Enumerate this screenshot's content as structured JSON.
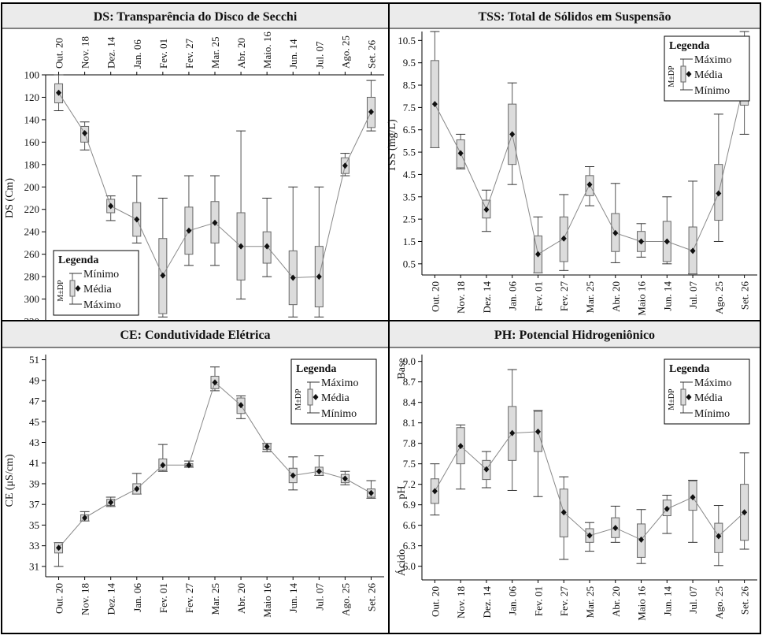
{
  "chart_data": [
    {
      "type": "boxplot",
      "title": "DS: Transparência do Disco de Secchi",
      "xlabel": "",
      "ylabel": "DS (Cm)",
      "ylim": [
        100,
        320
      ],
      "y_inverted": true,
      "x_axis_position": "top",
      "yticks": [
        "100",
        "120",
        "140",
        "160",
        "180",
        "200",
        "220",
        "240",
        "260",
        "280",
        "300",
        "320"
      ],
      "categories": [
        "Out. 20",
        "Nov. 18",
        "Dez. 14",
        "Jan. 06",
        "Fev. 01",
        "Fev. 27",
        "Mar. 25",
        "Abr. 20",
        "Maio. 16",
        "Jun. 14",
        "Jul. 07",
        "Ago. 25",
        "Set. 26"
      ],
      "mean": [
        116,
        152,
        217,
        229,
        279,
        239,
        232,
        253,
        253,
        281,
        280,
        181,
        133
      ],
      "sd_low": [
        108,
        146,
        211,
        214,
        246,
        218,
        213,
        223,
        240,
        257,
        253,
        174,
        120
      ],
      "sd_high": [
        125,
        160,
        223,
        244,
        313,
        260,
        250,
        283,
        268,
        305,
        307,
        188,
        147
      ],
      "min": [
        100,
        142,
        208,
        190,
        210,
        190,
        190,
        150,
        210,
        200,
        200,
        170,
        105
      ],
      "max": [
        132,
        167,
        230,
        250,
        316,
        270,
        270,
        300,
        280,
        316,
        316,
        190,
        150
      ],
      "legend": {
        "title": "Legenda",
        "top": "Mínimo",
        "mid": "Média",
        "bottom": "Máximo",
        "box": "M±DP",
        "placement": "bottom-left"
      }
    },
    {
      "type": "boxplot",
      "title": "TSS: Total de Sólidos em Suspensão",
      "xlabel": "",
      "ylabel": "TSS (mg/L)",
      "ylim": [
        0,
        10.9
      ],
      "y_inverted": false,
      "x_axis_position": "bottom",
      "yticks": [
        "0.5",
        "1.5",
        "2.5",
        "3.5",
        "4.5",
        "5.5",
        "6.5",
        "7.5",
        "8.5",
        "9.5",
        "10.5"
      ],
      "categories": [
        "Out. 20",
        "Nov. 18",
        "Dez. 14",
        "Jan. 06",
        "Fev. 01",
        "Fev. 27",
        "Mar. 25",
        "Abr. 20",
        "Maio 16",
        "Jun. 14",
        "Jul. 07",
        "Ago. 25",
        "Set. 26"
      ],
      "mean": [
        7.65,
        5.45,
        2.93,
        6.3,
        0.93,
        1.63,
        4.05,
        1.88,
        1.5,
        1.5,
        1.08,
        3.65,
        8.65
      ],
      "sd_low": [
        5.7,
        4.8,
        2.55,
        4.95,
        0.1,
        0.6,
        3.55,
        1.05,
        1.05,
        0.6,
        0.05,
        2.45,
        7.6
      ],
      "sd_high": [
        9.6,
        6.05,
        3.35,
        7.65,
        1.75,
        2.6,
        4.45,
        2.75,
        1.95,
        2.4,
        2.15,
        4.95,
        9.65
      ],
      "min": [
        5.7,
        4.75,
        1.95,
        4.05,
        0.1,
        0.2,
        3.1,
        0.55,
        0.8,
        0.5,
        0.05,
        1.5,
        6.3
      ],
      "max": [
        10.9,
        6.3,
        3.8,
        8.6,
        2.6,
        3.6,
        4.85,
        4.1,
        2.3,
        3.5,
        4.2,
        7.2,
        10.9
      ],
      "legend": {
        "title": "Legenda",
        "top": "Máximo",
        "mid": "Média",
        "bottom": "Mínimo",
        "box": "M±DP",
        "placement": "top-right"
      }
    },
    {
      "type": "boxplot",
      "title": "CE: Condutividade Elétrica",
      "xlabel": "",
      "ylabel": "CE (μS/cm)",
      "ylim": [
        30,
        51.5
      ],
      "y_inverted": false,
      "x_axis_position": "bottom",
      "yticks": [
        "31",
        "33",
        "35",
        "37",
        "39",
        "41",
        "43",
        "45",
        "47",
        "49",
        "51"
      ],
      "categories": [
        "Out. 20",
        "Nov. 18",
        "Dez. 14",
        "Jan. 06",
        "Fev. 01",
        "Fev. 27",
        "Mar. 25",
        "Abr. 20",
        "Maio 16",
        "Jun. 14",
        "Jul. 07",
        "Ago. 25",
        "Set. 26"
      ],
      "mean": [
        32.8,
        35.7,
        37.2,
        38.5,
        40.8,
        40.8,
        48.8,
        46.6,
        42.6,
        39.8,
        40.2,
        39.5,
        38.1
      ],
      "sd_low": [
        32.3,
        35.4,
        36.9,
        38.0,
        40.3,
        40.7,
        48.2,
        45.8,
        42.3,
        39.1,
        39.8,
        39.1,
        37.7
      ],
      "sd_high": [
        33.3,
        36.0,
        37.5,
        39.0,
        41.4,
        40.95,
        49.4,
        47.3,
        42.9,
        40.5,
        40.6,
        39.9,
        38.5
      ],
      "min": [
        31.0,
        35.4,
        36.8,
        38.0,
        40.2,
        40.6,
        48.0,
        45.3,
        42.1,
        38.4,
        39.8,
        38.9,
        37.6
      ],
      "max": [
        33.3,
        36.3,
        37.7,
        40.0,
        42.8,
        41.2,
        50.3,
        47.5,
        42.9,
        41.6,
        41.7,
        40.2,
        39.3
      ],
      "legend": {
        "title": "Legenda",
        "top": "Máximo",
        "mid": "Média",
        "bottom": "Mínimo",
        "box": "M±DP",
        "placement": "top-right"
      }
    },
    {
      "type": "boxplot",
      "title": "PH: Potencial Hidrogeniônico",
      "xlabel": "",
      "ylabel": "pH",
      "ylabel_top": "Base",
      "ylabel_bottom": "Ácido",
      "ylim": [
        5.8,
        9.1
      ],
      "y_inverted": false,
      "x_axis_position": "bottom",
      "yticks": [
        "6.0",
        "6.3",
        "6.6",
        "6.9",
        "7.2",
        "7.5",
        "7.8",
        "8.1",
        "8.4",
        "8.7",
        "9.0"
      ],
      "categories": [
        "Out. 20",
        "Nov. 18",
        "Dez. 14",
        "Jan. 06",
        "Fev. 01",
        "Fev. 27",
        "Mar. 25",
        "Abr. 20",
        "Maio 16",
        "Jun. 14",
        "Jul. 07",
        "Ago. 25",
        "Set. 26"
      ],
      "mean": [
        7.1,
        7.76,
        7.42,
        7.95,
        7.97,
        6.79,
        6.45,
        6.56,
        6.39,
        6.84,
        7.01,
        6.44,
        6.79
      ],
      "sd_low": [
        6.92,
        7.5,
        7.27,
        7.55,
        7.68,
        6.43,
        6.35,
        6.42,
        6.13,
        6.74,
        6.82,
        6.2,
        6.38
      ],
      "sd_high": [
        7.28,
        8.03,
        7.55,
        8.34,
        8.27,
        7.13,
        6.55,
        6.71,
        6.62,
        6.97,
        7.25,
        6.63,
        7.2
      ],
      "min": [
        6.75,
        7.13,
        7.15,
        7.11,
        7.02,
        6.1,
        6.22,
        6.35,
        6.04,
        6.48,
        6.35,
        6.01,
        6.25
      ],
      "max": [
        7.5,
        8.07,
        7.68,
        8.88,
        8.28,
        7.31,
        6.64,
        6.88,
        6.83,
        7.04,
        7.26,
        6.89,
        7.66
      ],
      "legend": {
        "title": "Legenda",
        "top": "Máximo",
        "mid": "Média",
        "bottom": "Mínimo",
        "box": "M±DP",
        "placement": "top-right"
      }
    }
  ]
}
